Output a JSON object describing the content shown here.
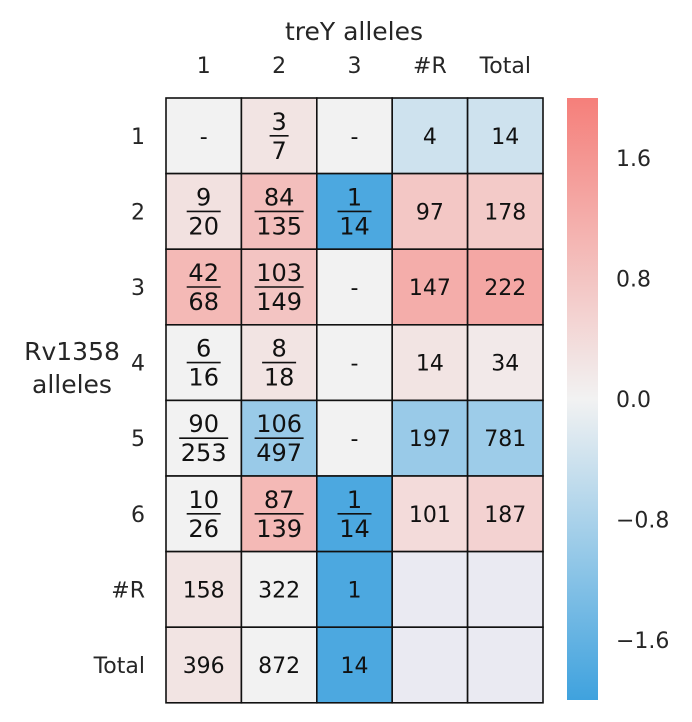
{
  "chart_data": {
    "type": "heatmap",
    "title": "treY alleles",
    "ylabel": "Rv1358\nalleles",
    "columns": [
      "1",
      "2",
      "3",
      "#R",
      "Total"
    ],
    "rows": [
      "1",
      "2",
      "3",
      "4",
      "5",
      "6",
      "#R",
      "Total"
    ],
    "cells": [
      [
        {
          "text": "-",
          "v": 0.0
        },
        {
          "num": "3",
          "den": "7",
          "v": 0.25
        },
        {
          "text": "-",
          "v": 0.0
        },
        {
          "text": "4",
          "v": -0.4
        },
        {
          "text": "14",
          "v": -0.4
        }
      ],
      [
        {
          "num": "9",
          "den": "20",
          "v": 0.3
        },
        {
          "num": "84",
          "den": "135",
          "v": 0.9
        },
        {
          "num": "1",
          "den": "14",
          "v": -1.85
        },
        {
          "text": "97",
          "v": 0.75
        },
        {
          "text": "178",
          "v": 0.7
        }
      ],
      [
        {
          "num": "42",
          "den": "68",
          "v": 1.0
        },
        {
          "num": "103",
          "den": "149",
          "v": 0.8
        },
        {
          "text": "-",
          "v": 0.0
        },
        {
          "text": "147",
          "v": 1.2
        },
        {
          "text": "222",
          "v": 1.3
        }
      ],
      [
        {
          "num": "6",
          "den": "16",
          "v": 0.0
        },
        {
          "num": "8",
          "den": "18",
          "v": 0.25
        },
        {
          "text": "-",
          "v": 0.0
        },
        {
          "text": "14",
          "v": 0.25
        },
        {
          "text": "34",
          "v": 0.15
        }
      ],
      [
        {
          "num": "90",
          "den": "253",
          "v": 0.0
        },
        {
          "num": "106",
          "den": "497",
          "v": -1.0
        },
        {
          "text": "-",
          "v": 0.0
        },
        {
          "text": "197",
          "v": -1.0
        },
        {
          "text": "781",
          "v": -0.95
        }
      ],
      [
        {
          "num": "10",
          "den": "26",
          "v": 0.0
        },
        {
          "num": "87",
          "den": "139",
          "v": 1.0
        },
        {
          "num": "1",
          "den": "14",
          "v": -1.85
        },
        {
          "text": "101",
          "v": 0.4
        },
        {
          "text": "187",
          "v": 0.55
        }
      ],
      [
        {
          "text": "158",
          "v": 0.25
        },
        {
          "text": "322",
          "v": 0.0
        },
        {
          "text": "1",
          "v": -1.85
        },
        {
          "empty": true
        },
        {
          "empty": true
        }
      ],
      [
        {
          "text": "396",
          "v": 0.25
        },
        {
          "text": "872",
          "v": 0.0
        },
        {
          "text": "14",
          "v": -1.85
        },
        {
          "empty": true
        },
        {
          "empty": true
        }
      ]
    ],
    "colorbar": {
      "ticks": [
        "1.6",
        "0.8",
        "0.0",
        "−0.8",
        "−1.6"
      ],
      "tick_values": [
        1.6,
        0.8,
        0.0,
        -0.8,
        -1.6
      ],
      "range": [
        -2.0,
        2.0
      ],
      "colors": {
        "low": "#3fa2de",
        "mid": "#f2f2f2",
        "high": "#f57f7a",
        "empty": "#eaeaf2"
      }
    },
    "grid": true,
    "legend": "right"
  }
}
